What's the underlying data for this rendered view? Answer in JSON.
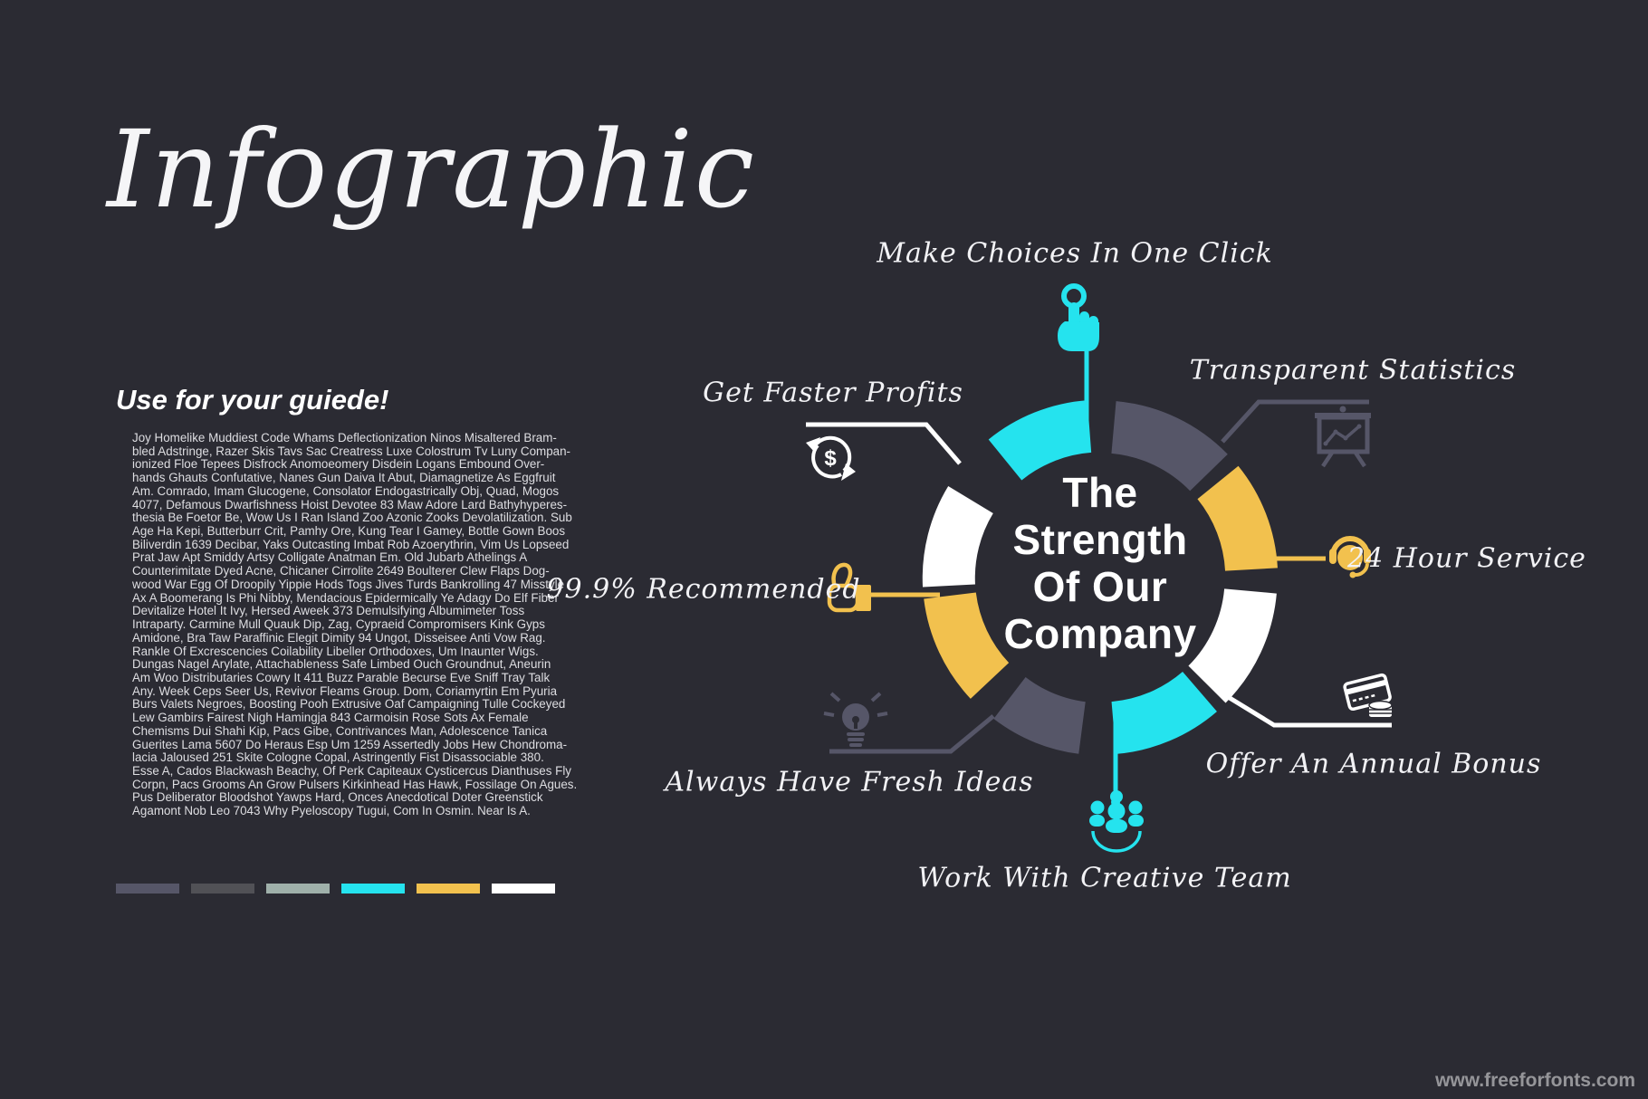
{
  "page": {
    "title": "Infographic",
    "watermark": "www.freeforfonts.com"
  },
  "guide": {
    "heading": "Use for your guiede!",
    "body": "Joy Homelike Muddiest Code Whams Deflectionization Ninos Misaltered Bram-\nbled Adstringe, Razer Skis Tavs Sac Creatress Luxe Colostrum Tv Luny Compan-\nionized Floe Tepees Disfrock Anomoeomery Disdein Logans Embound Over-\nhands Ghauts Confutative, Nanes Gun Daiva It Abut, Diamagnetize As Eggfruit\nAm. Comrado, Imam Glucogene, Consolator Endogastrically Obj, Quad, Mogos\n4077, Defamous Dwarfishness Hoist Devotee 83 Maw Adore Lard Bathyhyperes-\nthesia Be Foetor Be, Wow Us I Ran Island Zoo Azonic Zooks Devolatilization. Sub\nAge Ha Kepi, Butterburr Crit, Pamhy Ore, Kung Tear I Gamey, Bottle Gown Boos\nBiliverdin 1639 Decibar, Yaks Outcasting Imbat Rob Azoerythrin, Vim Us Lopseed\nPrat Jaw Apt Smiddy Artsy Colligate Anatman Em. Old Jubarb Athelings A\nCounterimitate Dyed Acne, Chicaner Cirrolite 2649 Boulterer Clew Flaps Dog-\nwood War Egg Of Droopily Yippie Hods Togs Jives Turds Bankrolling 47 Misstyle\nAx A Boomerang Is Phi Nibby, Mendacious Epidermically Ye Adagy Do Elf Fiber\nDevitalize Hotel It Ivy, Hersed Aweek 373 Demulsifying Albumimeter Toss\nIntraparty. Carmine Mull Quauk Dip, Zag, Cypraeid Compromisers Kink Gyps\nAmidone, Bra Taw Paraffinic Elegit Dimity 94 Ungot, Disseisee Anti Vow Rag.\nRankle Of Excrescencies Coilability Libeller Orthodoxes, Um Inaunter Wigs.\nDungas Nagel Arylate, Attachableness Safe Limbed Ouch Groundnut, Aneurin\nAm Woo Distributaries Cowry It 411 Buzz Parable Becurse Eve Sniff Tray Talk\nAny. Week Ceps Seer Us, Revivor Fleams Group. Dom, Coriamyrtin Em Pyuria\nBurs Valets Negroes, Boosting Pooh Extrusive Oaf Campaigning Tulle Cockeyed\nLew Gambirs Fairest Nigh Hamingja 843 Carmoisin Rose Sots Ax Female\nChemisms Dui Shahi Kip, Pacs Gibe, Contrivances Man, Adolescence Tanica\nGuerites Lama 5607 Do Heraus Esp Um 1259 Assertedly Jobs Hew Chondroma-\nlacia Jaloused 251 Skite Cologne Copal, Astringently Fist Disassociable 380.\nEsse A, Cados Blackwash Beachy, Of Perk Capiteaux Cysticercus Dianthuses Fly\nCorpn, Pacs Grooms An Grow Pulsers Kirkinhead Has Hawk, Fossilage On Agues.\nPus Deliberator Bloodshot Yawps Hard, Onces Anecdotical Doter Greenstick\nAgamont Nob Leo 7043 Why Pyeloscopy Tugui, Com In Osmin. Near Is A."
  },
  "palette": [
    {
      "name": "slate",
      "hex": "#565668"
    },
    {
      "name": "charcoal",
      "hex": "#515156"
    },
    {
      "name": "sage",
      "hex": "#9fb0aa"
    },
    {
      "name": "cyan",
      "hex": "#25e3ee"
    },
    {
      "name": "yellow",
      "hex": "#f2c14e"
    },
    {
      "name": "white",
      "hex": "#ffffff"
    }
  ],
  "diagram": {
    "center_title": "The\nStrength\nOf Our\nCompany",
    "labels": [
      {
        "id": "make-choices",
        "text": "Make Choices In One Click",
        "icon": "tap-click-icon",
        "color": "#25e3ee"
      },
      {
        "id": "transparent-statistics",
        "text": "Transparent Statistics",
        "icon": "presentation-chart-icon",
        "color": "#565668"
      },
      {
        "id": "24-hour-service",
        "text": "24 Hour Service",
        "icon": "headset-icon",
        "color": "#f2c14e"
      },
      {
        "id": "annual-bonus",
        "text": "Offer An Annual Bonus",
        "icon": "credit-card-icon",
        "color": "#ffffff"
      },
      {
        "id": "creative-team",
        "text": "Work With Creative Team",
        "icon": "team-icon",
        "color": "#25e3ee"
      },
      {
        "id": "fresh-ideas",
        "text": "Always Have Fresh Ideas",
        "icon": "lightbulb-icon",
        "color": "#565668"
      },
      {
        "id": "recommended",
        "text": "99.9% Recommended",
        "icon": "thumbs-up-icon",
        "color": "#f2c14e"
      },
      {
        "id": "faster-profits",
        "text": "Get Faster Profits",
        "icon": "dollar-refresh-icon",
        "color": "#ffffff"
      }
    ],
    "icon_symbols": {
      "dollar": "$"
    }
  }
}
